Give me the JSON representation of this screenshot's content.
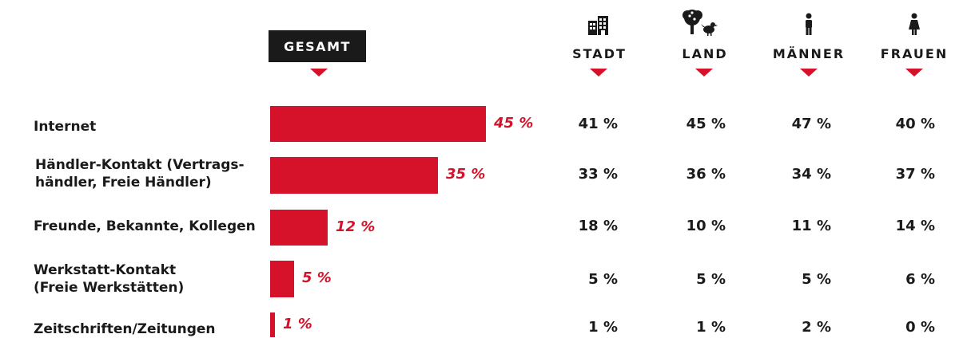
{
  "header": {
    "gesamt_label": "GESAMT",
    "columns": [
      {
        "label": "STADT",
        "icon": "city-buildings-icon"
      },
      {
        "label": "LAND",
        "icon": "tree-and-chicken-icon"
      },
      {
        "label": "MÄNNER",
        "icon": "man-icon"
      },
      {
        "label": "FRAUEN",
        "icon": "woman-icon"
      }
    ]
  },
  "colors": {
    "accent": "#d6122a",
    "pill": "#1a1a1a",
    "text": "#1a1a1a"
  },
  "rows": [
    {
      "label_lines": [
        "Internet"
      ],
      "gesamt": "45 %",
      "stadt": "41 %",
      "land": "45 %",
      "maenner": "47 %",
      "frauen": "40 %"
    },
    {
      "label_lines": [
        "Händler-Kontakt (Vertrags-",
        "händler, Freie Händler)"
      ],
      "gesamt": "35 %",
      "stadt": "33 %",
      "land": "36 %",
      "maenner": "34 %",
      "frauen": "37 %"
    },
    {
      "label_lines": [
        "Freunde, Bekannte, Kollegen"
      ],
      "gesamt": "12 %",
      "stadt": "18 %",
      "land": "10 %",
      "maenner": "11 %",
      "frauen": "14 %"
    },
    {
      "label_lines": [
        "Werkstatt-Kontakt",
        "(Freie Werkstätten)"
      ],
      "gesamt": "5 %",
      "stadt": "5 %",
      "land": "5 %",
      "maenner": "5 %",
      "frauen": "6 %"
    },
    {
      "label_lines": [
        "Zeitschriften/Zeitungen"
      ],
      "gesamt": "1 %",
      "stadt": "1 %",
      "land": "1 %",
      "maenner": "2 %",
      "frauen": "0 %"
    }
  ],
  "chart_data": {
    "type": "bar",
    "orientation": "horizontal",
    "categories": [
      "Internet",
      "Händler-Kontakt (Vertragshändler, Freie Händler)",
      "Freunde, Bekannte, Kollegen",
      "Werkstatt-Kontakt (Freie Werkstätten)",
      "Zeitschriften/Zeitungen"
    ],
    "series": [
      {
        "name": "GESAMT",
        "values": [
          45,
          35,
          12,
          5,
          1
        ]
      },
      {
        "name": "STADT",
        "values": [
          41,
          33,
          18,
          5,
          1
        ]
      },
      {
        "name": "LAND",
        "values": [
          45,
          36,
          10,
          5,
          1
        ]
      },
      {
        "name": "MÄNNER",
        "values": [
          47,
          34,
          11,
          5,
          2
        ]
      },
      {
        "name": "FRAUEN",
        "values": [
          40,
          37,
          14,
          6,
          0
        ]
      }
    ],
    "value_unit": "%",
    "xlim": [
      0,
      100
    ],
    "grid": false,
    "title": "",
    "xlabel": "",
    "ylabel": ""
  }
}
